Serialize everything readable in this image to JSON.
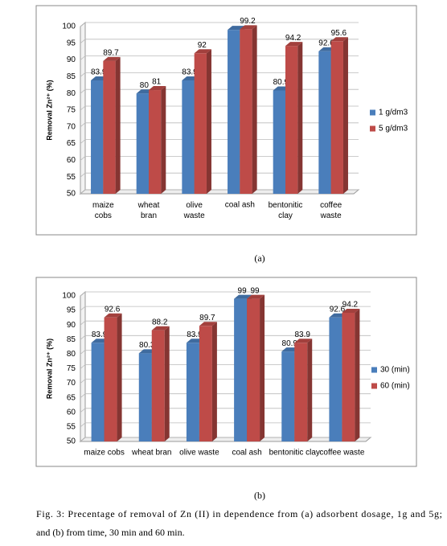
{
  "chart_data": [
    {
      "type": "bar",
      "y_label": "Removal Zn²⁺ (%)",
      "categories": [
        "maize cobs",
        "wheat bran",
        "olive waste",
        "coal ash",
        "bentonitic clay",
        "coffee waste"
      ],
      "series": [
        {
          "name": "1 g/dm3",
          "color": "#4a7ebb",
          "values": [
            83.9,
            80,
            83.9,
            99,
            80.9,
            92.6
          ],
          "value_labels": [
            83.9,
            80,
            83.9,
            null,
            80.9,
            92.6
          ]
        },
        {
          "name": "5 g/dm3",
          "color": "#be4b48",
          "values": [
            89.7,
            81,
            92,
            99.2,
            94.2,
            95.6
          ]
        }
      ],
      "ylim": [
        50,
        100
      ],
      "yticks": [
        50,
        55,
        60,
        65,
        70,
        75,
        80,
        85,
        90,
        95,
        100
      ],
      "grid": true,
      "legend": "right"
    },
    {
      "type": "bar",
      "y_label": "Removal Zn²⁺ (%)",
      "categories": [
        "maize cobs",
        "wheat bran",
        "olive waste",
        "coal ash",
        "bentonitic clay",
        "coffee waste"
      ],
      "series": [
        {
          "name": "30 (min)",
          "color": "#4a7ebb",
          "values": [
            83.9,
            80.3,
            83.9,
            99,
            80.9,
            92.6
          ]
        },
        {
          "name": "60 (min)",
          "color": "#be4b48",
          "values": [
            92.6,
            88.2,
            89.7,
            99,
            83.9,
            94.2
          ]
        }
      ],
      "ylim": [
        50,
        100
      ],
      "yticks": [
        50,
        55,
        60,
        65,
        70,
        75,
        80,
        85,
        90,
        95,
        100
      ],
      "grid": true,
      "legend": "right"
    }
  ],
  "panel_labels": [
    "(a)",
    "(b)"
  ],
  "caption": [
    "Fig. 3: Precentage of removal of Zn (II) in dependence from (a) adsorbent dosage, 1g and 5g;",
    "and (b) from time, 30 min and 60 min."
  ]
}
